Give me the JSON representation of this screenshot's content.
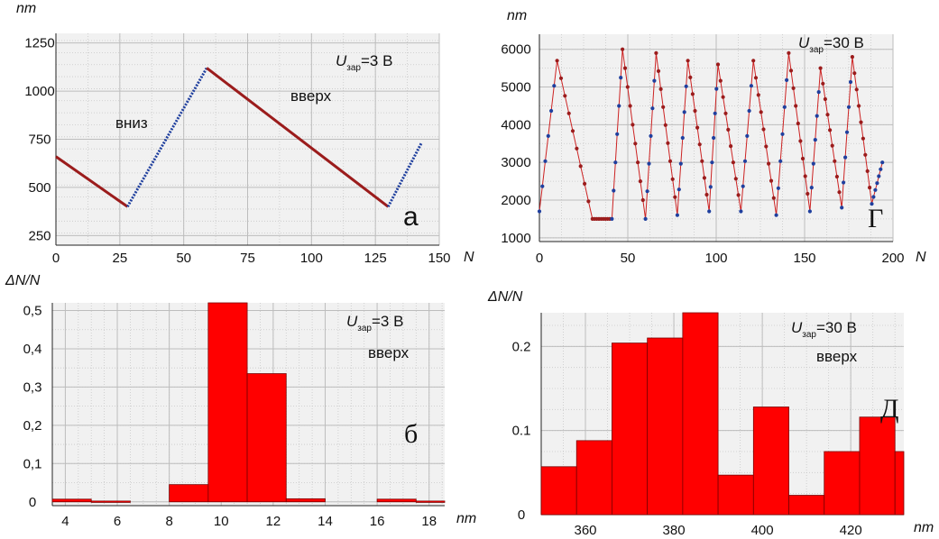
{
  "chart_data": [
    {
      "id": "a",
      "type": "line",
      "panel_label": "а",
      "ylabel": "nm",
      "xlabel": "N",
      "xlim": [
        0,
        150
      ],
      "ylim": [
        200,
        1300
      ],
      "xticks": [
        0,
        25,
        50,
        75,
        100,
        125,
        150
      ],
      "yticks": [
        250,
        500,
        750,
        1000,
        1250
      ],
      "annotation": {
        "U": "U",
        "sub": "зар",
        "value": "=3 В"
      },
      "segment_labels": {
        "down": "вниз",
        "up": "вверх"
      },
      "series": [
        {
          "name": "вверх",
          "color": "#9b1c1c",
          "points": [
            [
              0,
              660
            ],
            [
              28,
              400
            ]
          ]
        },
        {
          "name": "вниз",
          "color": "#1f3f9e",
          "points": [
            [
              28,
              400
            ],
            [
              59,
              1120
            ]
          ]
        },
        {
          "name": "вверх",
          "color": "#9b1c1c",
          "points": [
            [
              59,
              1120
            ],
            [
              130,
              400
            ]
          ]
        },
        {
          "name": "вниз",
          "color": "#1f3f9e",
          "points": [
            [
              130,
              400
            ],
            [
              143,
              730
            ]
          ]
        }
      ]
    },
    {
      "id": "g",
      "type": "line",
      "panel_label": "Г",
      "ylabel": "nm",
      "xlabel": "N",
      "xlim": [
        0,
        200
      ],
      "ylim": [
        900,
        6400
      ],
      "xticks": [
        0,
        50,
        100,
        150,
        200
      ],
      "yticks": [
        1000,
        2000,
        3000,
        4000,
        5000,
        6000
      ],
      "annotation": {
        "U": "U",
        "sub": "зар",
        "value": "=30 В"
      },
      "cycle_maxima": [
        [
          10,
          5700
        ],
        [
          47,
          6000
        ],
        [
          66,
          5900
        ],
        [
          84,
          5700
        ],
        [
          101,
          5600
        ],
        [
          121,
          5700
        ],
        [
          141,
          5900
        ],
        [
          159,
          5500
        ],
        [
          177,
          5800
        ]
      ],
      "cycle_minima": [
        [
          0,
          1700
        ],
        [
          30,
          1500
        ],
        [
          41,
          1500
        ],
        [
          60,
          1500
        ],
        [
          78,
          1600
        ],
        [
          96,
          1700
        ],
        [
          114,
          1700
        ],
        [
          134,
          1600
        ],
        [
          153,
          1700
        ],
        [
          171,
          1800
        ],
        [
          188,
          1900
        ],
        [
          194,
          3000
        ]
      ],
      "line_color": "#cc2222",
      "down_color": "#1f3f9e",
      "up_color": "#9b1c1c"
    },
    {
      "id": "b",
      "type": "bar",
      "panel_label": "б",
      "ylabel": "ΔN/N",
      "xlabel": "nm",
      "xlim": [
        3.5,
        18.6
      ],
      "ylim": [
        -0.01,
        0.52
      ],
      "xticks": [
        4,
        6,
        8,
        10,
        12,
        14,
        16,
        18
      ],
      "yticks": [
        0,
        0.1,
        0.2,
        0.3,
        0.4,
        0.5
      ],
      "ytick_labels": [
        "0",
        "0,1",
        "0,2",
        "0,3",
        "0,4",
        "0,5"
      ],
      "annotation": {
        "U": "U",
        "sub": "зар",
        "value": "=3 В",
        "direction": "вверх"
      },
      "bar_color": "#ff0000",
      "bins": [
        {
          "x0": 3.5,
          "x1": 5.0,
          "value": 0.007
        },
        {
          "x0": 5.0,
          "x1": 6.5,
          "value": 0.002
        },
        {
          "x0": 8.0,
          "x1": 9.5,
          "value": 0.045
        },
        {
          "x0": 9.5,
          "x1": 11.0,
          "value": 0.52
        },
        {
          "x0": 11.0,
          "x1": 12.5,
          "value": 0.335
        },
        {
          "x0": 12.5,
          "x1": 14.0,
          "value": 0.008
        },
        {
          "x0": 16.0,
          "x1": 17.5,
          "value": 0.007
        },
        {
          "x0": 17.5,
          "x1": 18.6,
          "value": 0.002
        }
      ]
    },
    {
      "id": "d",
      "type": "bar",
      "panel_label": "Д",
      "ylabel": "ΔN/N",
      "xlabel": "nm",
      "xlim": [
        350,
        432
      ],
      "ylim": [
        0,
        0.24
      ],
      "xticks": [
        360,
        380,
        400,
        420
      ],
      "yticks": [
        0,
        0.1,
        0.2
      ],
      "ytick_labels": [
        "0",
        "0.1",
        "0.2"
      ],
      "annotation": {
        "U": "U",
        "sub": "зар",
        "value": "=30 В",
        "direction": "вверх"
      },
      "bar_color": "#ff0000",
      "bins": [
        {
          "x0": 350,
          "x1": 358,
          "value": 0.057
        },
        {
          "x0": 358,
          "x1": 366,
          "value": 0.088
        },
        {
          "x0": 366,
          "x1": 374,
          "value": 0.204
        },
        {
          "x0": 374,
          "x1": 382,
          "value": 0.21
        },
        {
          "x0": 382,
          "x1": 390,
          "value": 0.242
        },
        {
          "x0": 390,
          "x1": 398,
          "value": 0.047
        },
        {
          "x0": 398,
          "x1": 406,
          "value": 0.128
        },
        {
          "x0": 406,
          "x1": 414,
          "value": 0.023
        },
        {
          "x0": 414,
          "x1": 422,
          "value": 0.075
        },
        {
          "x0": 422,
          "x1": 430,
          "value": 0.116
        },
        {
          "x0": 430,
          "x1": 438,
          "value": 0.075
        }
      ]
    }
  ]
}
